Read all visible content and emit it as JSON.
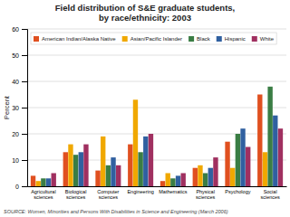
{
  "chart_data": {
    "type": "bar",
    "title": "Field distribution of S&E graduate students,\nby race/ethnicity: 2003",
    "ylabel": "Percent",
    "source": "SOURCE:   Women, Minorities and Persons With Disabilities in Science and Engineering (March 2006)",
    "categories": [
      "Agricultural\nsciences",
      "Biological\nsciences",
      "Computer\nsciences",
      "Engineering",
      "Mathematics",
      "Physical\nsciences",
      "Psychology",
      "Social\nsciences"
    ],
    "series": [
      {
        "name": "American Indian/Alaska Native",
        "color": "#e05020",
        "values": [
          4,
          13,
          6,
          16,
          2,
          7,
          17,
          35
        ]
      },
      {
        "name": "Asian/Pacific Islander",
        "color": "#f0a800",
        "values": [
          2,
          16,
          19,
          33,
          5,
          8,
          7,
          13
        ]
      },
      {
        "name": "Black",
        "color": "#3a7d44",
        "values": [
          3,
          12,
          8,
          13,
          3,
          5,
          20,
          38
        ]
      },
      {
        "name": "Hispanic",
        "color": "#3060a0",
        "values": [
          3,
          13,
          11,
          19,
          4,
          7,
          22,
          27
        ]
      },
      {
        "name": "White",
        "color": "#a03060",
        "values": [
          5,
          16,
          8,
          20,
          5,
          11,
          15,
          22
        ]
      }
    ],
    "ylim": [
      0,
      60
    ],
    "yticks": [
      0,
      10,
      20,
      30,
      40,
      50,
      60
    ],
    "grid": true,
    "legend": "upper left"
  }
}
